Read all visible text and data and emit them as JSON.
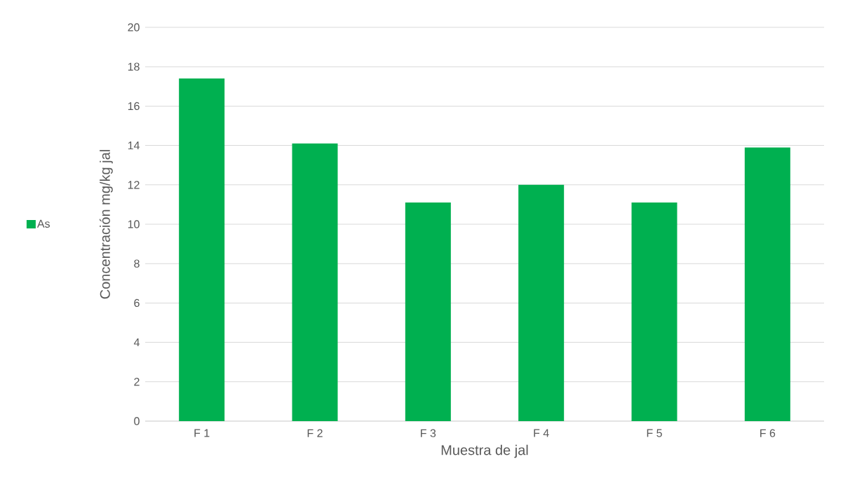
{
  "chart_data": {
    "type": "bar",
    "xlabel": "Muestra de jal",
    "ylabel": "Concentración mg/kg jal",
    "categories": [
      "F 1",
      "F 2",
      "F 3",
      "F 4",
      "F 5",
      "F 6"
    ],
    "series": [
      {
        "name": "As",
        "color": "#00b050",
        "values": [
          17.4,
          14.1,
          11.1,
          12.0,
          11.1,
          13.9
        ]
      }
    ],
    "ylim": [
      0,
      20
    ],
    "yticks": [
      0,
      2,
      4,
      6,
      8,
      10,
      12,
      14,
      16,
      18,
      20
    ],
    "grid": "y",
    "legend": "left"
  }
}
